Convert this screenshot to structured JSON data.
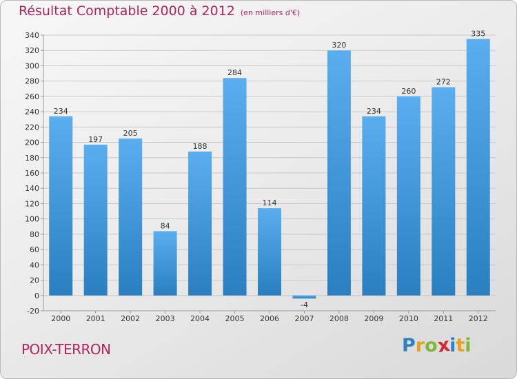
{
  "header": {
    "title": "Résultat Comptable 2000 à 2012",
    "unit": "(en milliers d'€)"
  },
  "footer": {
    "place": "POIX-TERRON",
    "brand": {
      "letters": [
        "P",
        "r",
        "o",
        "x",
        "i",
        "t",
        "i"
      ],
      "colors": [
        "#2f7fc4",
        "#e8a020",
        "#7db83a",
        "#d8262e",
        "#2f7fc4",
        "#e8a020",
        "#7db83a"
      ]
    }
  },
  "chart_data": {
    "type": "bar",
    "categories": [
      "2000",
      "2001",
      "2002",
      "2003",
      "2004",
      "2005",
      "2006",
      "2007",
      "2008",
      "2009",
      "2010",
      "2011",
      "2012"
    ],
    "values": [
      234,
      197,
      205,
      84,
      188,
      284,
      114,
      -4,
      320,
      234,
      260,
      272,
      335
    ],
    "data_labels": [
      "234",
      "197",
      "205",
      "84",
      "188",
      "284",
      "114",
      "-4",
      "320",
      "234",
      "260",
      "272",
      "335"
    ],
    "ylim": [
      -20,
      340
    ],
    "yticks": [
      -20,
      0,
      20,
      40,
      60,
      80,
      100,
      120,
      140,
      160,
      180,
      200,
      220,
      240,
      260,
      280,
      300,
      320,
      340
    ],
    "grid": true,
    "colors": {
      "bar_light": "#5aaef0",
      "bar_dark": "#2a7fc0",
      "grid": "#c8c8c8",
      "axis": "#999999",
      "text": "#333333"
    }
  }
}
